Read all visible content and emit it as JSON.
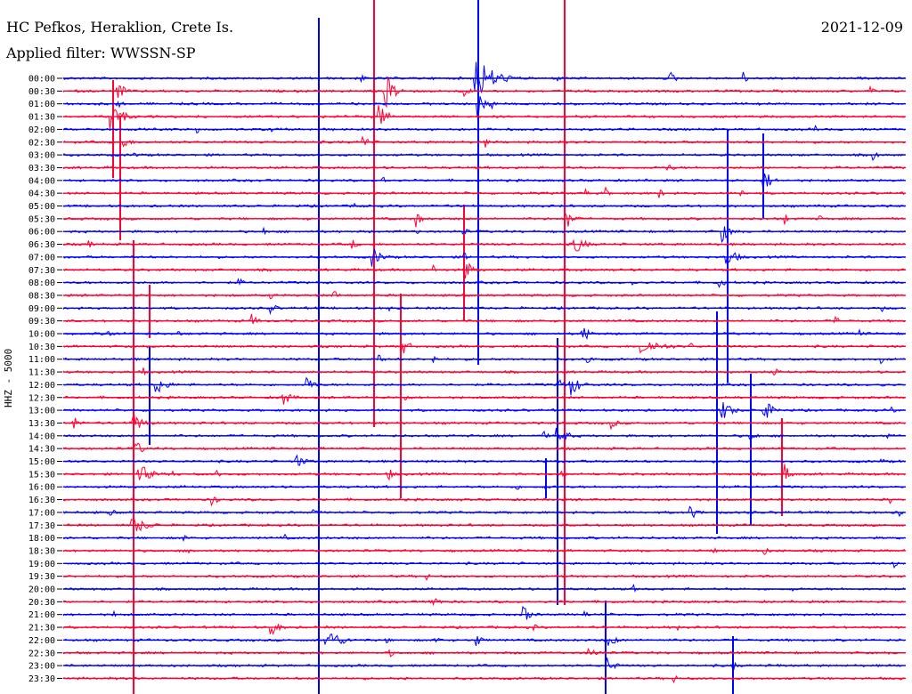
{
  "header": {
    "station": "HC Pefkos, Heraklion, Crete Is.",
    "filter_label": "Applied filter: WWSSN-SP",
    "date": "2021-12-09"
  },
  "chart_data": {
    "type": "line",
    "title": "HC Pefkos, Heraklion, Crete Is.",
    "subtitle": "Applied filter: WWSSN-SP",
    "date": "2021-12-09",
    "ylabel": "HHZ - 5000",
    "categories": [
      "00:00",
      "00:30",
      "01:00",
      "01:30",
      "02:00",
      "02:30",
      "03:00",
      "03:30",
      "04:00",
      "04:30",
      "05:00",
      "05:30",
      "06:00",
      "06:30",
      "07:00",
      "07:30",
      "08:00",
      "08:30",
      "09:00",
      "09:30",
      "10:00",
      "10:30",
      "11:00",
      "11:30",
      "12:00",
      "12:30",
      "13:00",
      "13:30",
      "14:00",
      "14:30",
      "15:00",
      "15:30",
      "16:00",
      "16:30",
      "17:00",
      "17:30",
      "18:00",
      "18:30",
      "19:00",
      "19:30",
      "20:00",
      "20:30",
      "21:00",
      "21:30",
      "22:00",
      "22:30",
      "23:00",
      "23:30"
    ],
    "colors": {
      "blue": "#0000ff",
      "red": "#ff0033",
      "axis": "#000000"
    },
    "grid": false
  }
}
